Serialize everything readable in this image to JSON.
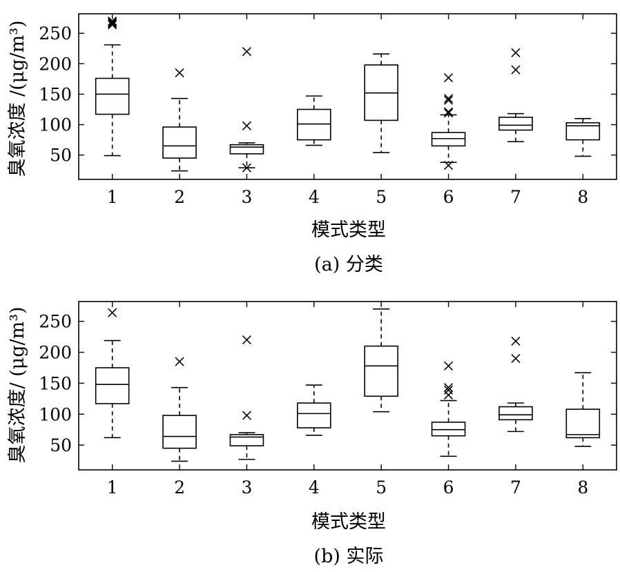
{
  "chart_data": [
    {
      "type": "boxplot",
      "caption": "(a) 分类",
      "xlabel": "模式类型",
      "ylabel": "臭氧浓度 /(μg/m³)",
      "ylim": [
        10,
        282
      ],
      "yticks": [
        50,
        100,
        150,
        200,
        250
      ],
      "categories": [
        "1",
        "2",
        "3",
        "4",
        "5",
        "6",
        "7",
        "8"
      ],
      "boxes": [
        {
          "whisker_low": 49,
          "q1": 117,
          "median": 150,
          "q3": 176,
          "whisker_high": 231,
          "outliers": [
            264,
            266,
            268,
            270
          ]
        },
        {
          "whisker_low": 24,
          "q1": 45,
          "median": 65,
          "q3": 96,
          "whisker_high": 143,
          "outliers": [
            185
          ]
        },
        {
          "whisker_low": 29,
          "q1": 52,
          "median": 63,
          "q3": 67,
          "whisker_high": 70,
          "outliers": [
            29,
            98,
            220
          ]
        },
        {
          "whisker_low": 66,
          "q1": 75,
          "median": 101,
          "q3": 125,
          "whisker_high": 147,
          "outliers": []
        },
        {
          "whisker_low": 54,
          "q1": 107,
          "median": 152,
          "q3": 198,
          "whisker_high": 216,
          "outliers": []
        },
        {
          "whisker_low": 38,
          "q1": 65,
          "median": 77,
          "q3": 87,
          "whisker_high": 116,
          "outliers": [
            33,
            119,
            121,
            140,
            143,
            177
          ]
        },
        {
          "whisker_low": 72,
          "q1": 91,
          "median": 99,
          "q3": 112,
          "whisker_high": 118,
          "outliers": [
            190,
            218
          ]
        },
        {
          "whisker_low": 48,
          "q1": 75,
          "median": 98,
          "q3": 103,
          "whisker_high": 110,
          "outliers": []
        }
      ]
    },
    {
      "type": "boxplot",
      "caption": "(b) 实际",
      "xlabel": "模式类型",
      "ylabel": "臭氧浓度/ (μg/m³)",
      "ylim": [
        10,
        282
      ],
      "yticks": [
        50,
        100,
        150,
        200,
        250
      ],
      "categories": [
        "1",
        "2",
        "3",
        "4",
        "5",
        "6",
        "7",
        "8"
      ],
      "boxes": [
        {
          "whisker_low": 62,
          "q1": 117,
          "median": 148,
          "q3": 175,
          "whisker_high": 219,
          "outliers": [
            264
          ]
        },
        {
          "whisker_low": 24,
          "q1": 45,
          "median": 64,
          "q3": 98,
          "whisker_high": 143,
          "outliers": [
            185
          ]
        },
        {
          "whisker_low": 27,
          "q1": 49,
          "median": 63,
          "q3": 67,
          "whisker_high": 70,
          "outliers": [
            98,
            220
          ]
        },
        {
          "whisker_low": 66,
          "q1": 78,
          "median": 101,
          "q3": 118,
          "whisker_high": 147,
          "outliers": []
        },
        {
          "whisker_low": 104,
          "q1": 129,
          "median": 178,
          "q3": 210,
          "whisker_high": 270,
          "outliers": []
        },
        {
          "whisker_low": 32,
          "q1": 65,
          "median": 75,
          "q3": 87,
          "whisker_high": 122,
          "outliers": [
            131,
            139,
            143,
            178
          ]
        },
        {
          "whisker_low": 72,
          "q1": 91,
          "median": 99,
          "q3": 112,
          "whisker_high": 118,
          "outliers": [
            190,
            218
          ]
        },
        {
          "whisker_low": 48,
          "q1": 62,
          "median": 67,
          "q3": 108,
          "whisker_high": 167,
          "outliers": []
        }
      ]
    }
  ]
}
